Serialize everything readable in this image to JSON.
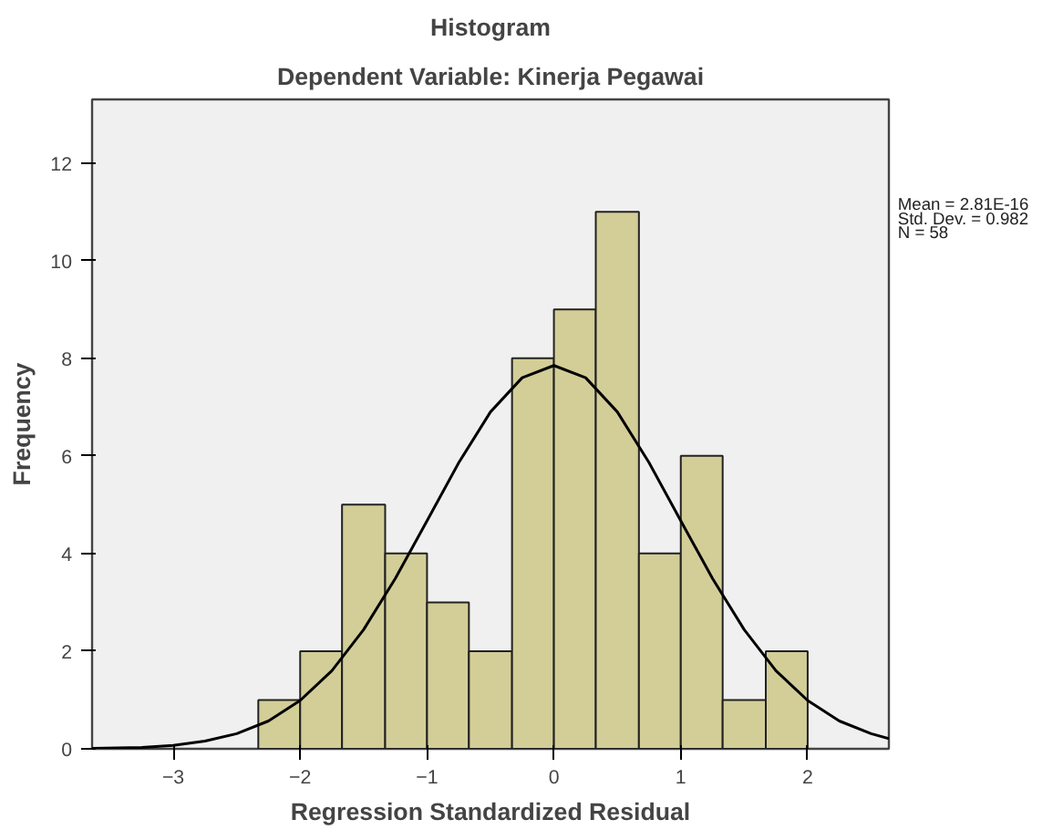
{
  "chart_data": {
    "type": "histogram",
    "title": "Histogram",
    "subtitle": "Dependent Variable: Kinerja Pegawai",
    "xlabel": "Regression Standardized Residual",
    "ylabel": "Frequency",
    "bins": [
      -2.33,
      -2.0,
      -1.67,
      -1.33,
      -1.0,
      -0.67,
      -0.33,
      0.0,
      0.33,
      0.67,
      1.0,
      1.33,
      1.67,
      2.0
    ],
    "values": [
      1,
      2,
      5,
      4,
      3,
      2,
      8,
      9,
      11,
      4,
      6,
      1,
      2
    ],
    "color": "#d3ce97",
    "series": [
      {
        "type": "line",
        "color": "#000000",
        "x": [
          -3.64,
          -3.25,
          -3.0,
          -2.75,
          -2.5,
          -2.25,
          -2.0,
          -1.75,
          -1.5,
          -1.25,
          -1.0,
          -0.75,
          -0.5,
          -0.25,
          0.0,
          0.25,
          0.5,
          0.75,
          1.0,
          1.25,
          1.5,
          1.75,
          2.0,
          2.25,
          2.5,
          2.64
        ],
        "values": [
          0.01,
          0.03,
          0.07,
          0.16,
          0.31,
          0.57,
          0.99,
          1.6,
          2.44,
          3.49,
          4.67,
          5.86,
          6.9,
          7.6,
          7.85,
          7.6,
          6.9,
          5.86,
          4.67,
          3.49,
          2.44,
          1.6,
          0.99,
          0.57,
          0.31,
          0.21
        ]
      }
    ],
    "xlim": [
      -3.64,
      2.64
    ],
    "ylim": [
      0,
      13.3
    ],
    "xticks": [
      -3,
      -2,
      -1,
      0,
      1,
      2
    ],
    "yticks": [
      0,
      2,
      4,
      6,
      8,
      10,
      12
    ],
    "annotations": [
      "Mean = 2.81E-16",
      "Std. Dev. = 0.982",
      "N = 58"
    ],
    "grid": false,
    "legend": false
  }
}
